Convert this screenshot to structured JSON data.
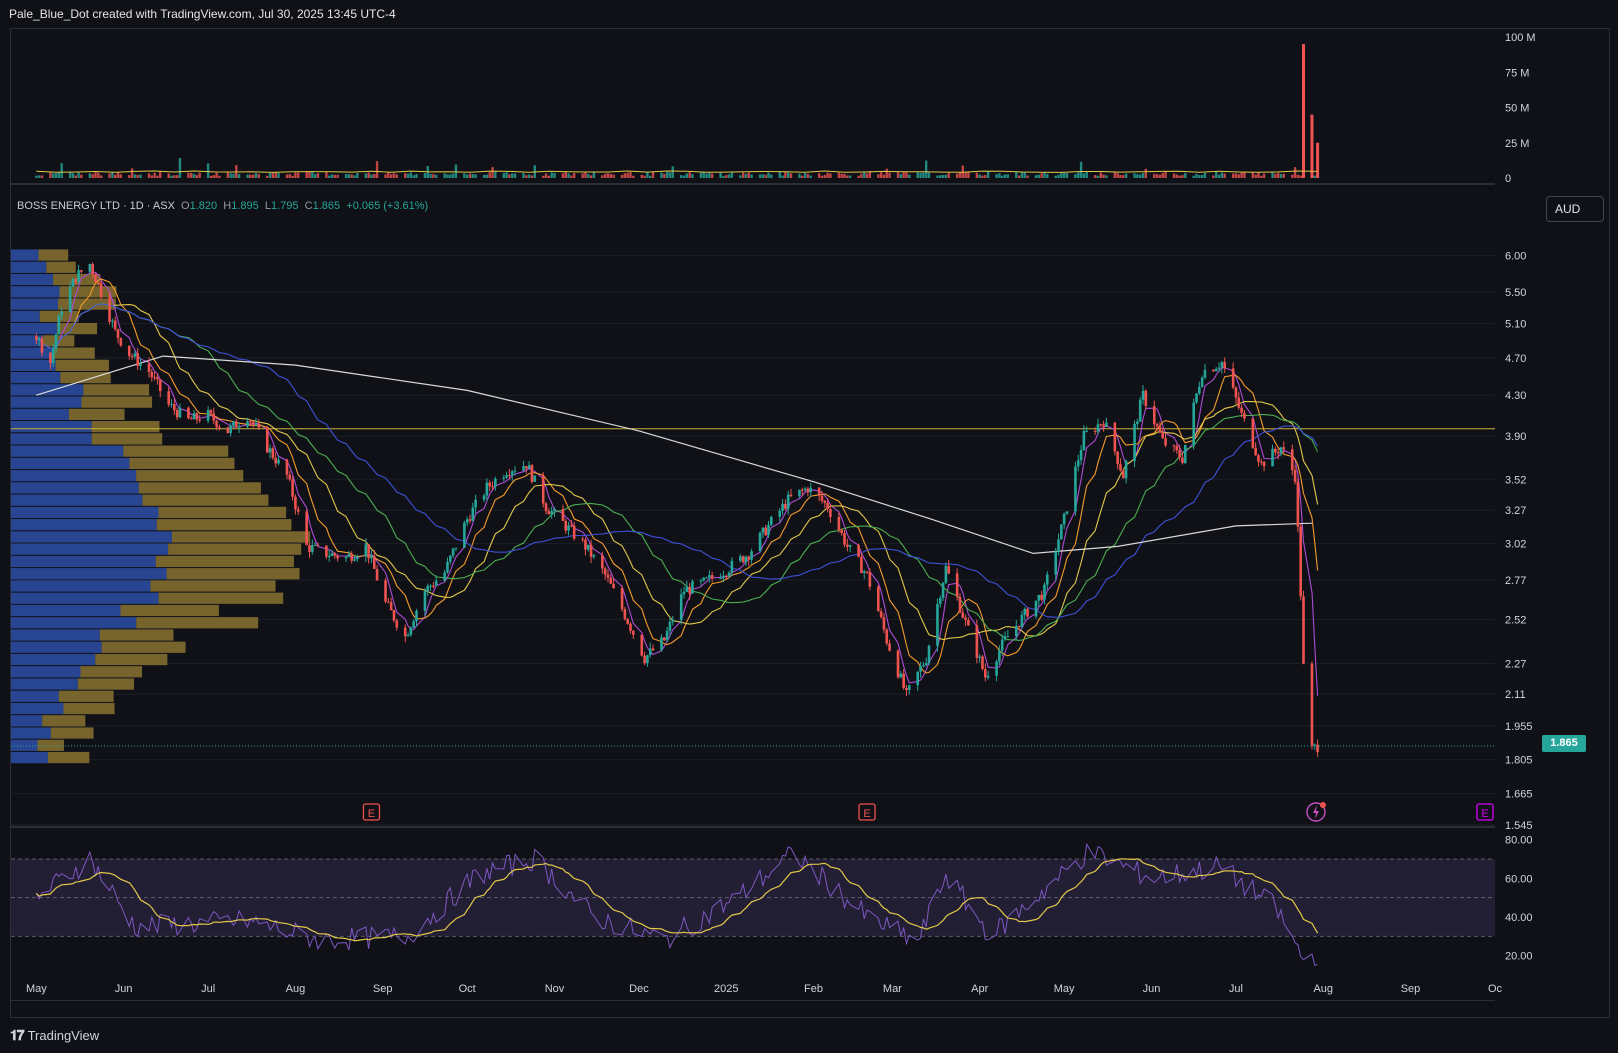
{
  "credit": "Pale_Blue_Dot created with TradingView.com, Jul 30, 2025 13:45 UTC-4",
  "brand": "TradingView",
  "currency": "AUD",
  "legend": {
    "symbol": "BOSS ENERGY LTD · 1D · ASX",
    "open_key": "O",
    "open": "1.820",
    "high_key": "H",
    "high": "1.895",
    "low_key": "L",
    "low": "1.795",
    "close_key": "C",
    "close": "1.865",
    "change": "+0.065 (+3.61%)"
  },
  "last_price_label": "1.865",
  "icons": [
    "earnings-marker-icon",
    "dividend-flash-icon",
    "tradingview-logo-icon"
  ],
  "colors": {
    "up": "#26a69a",
    "down": "#ef5350",
    "rsi": "#7e57c2",
    "rsi_ma": "#e2c84a",
    "sma200": "#d9d9d9",
    "vp_up": "#2d4fa8",
    "vp_down": "#8a7330",
    "resistance": "#c9b13a"
  },
  "chart_data": {
    "type": "candlestick",
    "x_ticks": [
      "May",
      "Jun",
      "Jul",
      "Aug",
      "Sep",
      "Oct",
      "Nov",
      "Dec",
      "2025",
      "Feb",
      "Mar",
      "Apr",
      "May",
      "Jun",
      "Jul",
      "Aug",
      "Sep",
      "Oc"
    ],
    "price_ticks": [
      "6.00",
      "5.50",
      "5.10",
      "4.70",
      "4.30",
      "3.90",
      "3.52",
      "3.27",
      "3.02",
      "2.77",
      "2.52",
      "2.27",
      "2.11",
      "1.955",
      "1.805",
      "1.665",
      "1.545"
    ],
    "log_scale": true,
    "volume_ticks": [
      "100 M",
      "75 M",
      "50 M",
      "25 M",
      "0"
    ],
    "rsi_ticks": [
      "80.00",
      "60.00",
      "40.00",
      "20.00"
    ],
    "rsi_bands": [
      70,
      50,
      30
    ],
    "resistance_level": 3.97,
    "price_path": [
      [
        "2024-05-01",
        4.95
      ],
      [
        "2024-05-06",
        4.65
      ],
      [
        "2024-05-10",
        5.3
      ],
      [
        "2024-05-15",
        5.7
      ],
      [
        "2024-05-20",
        5.88
      ],
      [
        "2024-05-24",
        5.5
      ],
      [
        "2024-05-29",
        5.0
      ],
      [
        "2024-06-03",
        4.75
      ],
      [
        "2024-06-10",
        4.55
      ],
      [
        "2024-06-17",
        4.2
      ],
      [
        "2024-06-24",
        4.05
      ],
      [
        "2024-07-01",
        4.1
      ],
      [
        "2024-07-08",
        3.95
      ],
      [
        "2024-07-15",
        4.1
      ],
      [
        "2024-07-22",
        3.8
      ],
      [
        "2024-07-29",
        3.55
      ],
      [
        "2024-08-05",
        3.0
      ],
      [
        "2024-08-12",
        2.95
      ],
      [
        "2024-08-19",
        2.92
      ],
      [
        "2024-08-26",
        3.0
      ],
      [
        "2024-09-02",
        2.62
      ],
      [
        "2024-09-09",
        2.42
      ],
      [
        "2024-09-16",
        2.7
      ],
      [
        "2024-09-23",
        2.82
      ],
      [
        "2024-10-01",
        3.2
      ],
      [
        "2024-10-08",
        3.45
      ],
      [
        "2024-10-15",
        3.6
      ],
      [
        "2024-10-22",
        3.65
      ],
      [
        "2024-10-29",
        3.3
      ],
      [
        "2024-11-05",
        3.15
      ],
      [
        "2024-11-12",
        3.0
      ],
      [
        "2024-11-19",
        2.8
      ],
      [
        "2024-11-26",
        2.55
      ],
      [
        "2024-12-03",
        2.3
      ],
      [
        "2024-12-10",
        2.4
      ],
      [
        "2024-12-17",
        2.7
      ],
      [
        "2024-12-24",
        2.75
      ],
      [
        "2025-01-02",
        2.85
      ],
      [
        "2025-01-09",
        2.95
      ],
      [
        "2025-01-16",
        3.15
      ],
      [
        "2025-01-23",
        3.35
      ],
      [
        "2025-01-30",
        3.45
      ],
      [
        "2025-02-06",
        3.3
      ],
      [
        "2025-02-13",
        3.0
      ],
      [
        "2025-02-20",
        2.8
      ],
      [
        "2025-02-27",
        2.4
      ],
      [
        "2025-03-06",
        2.1
      ],
      [
        "2025-03-13",
        2.3
      ],
      [
        "2025-03-20",
        2.85
      ],
      [
        "2025-03-27",
        2.5
      ],
      [
        "2025-04-03",
        2.2
      ],
      [
        "2025-04-10",
        2.4
      ],
      [
        "2025-04-17",
        2.55
      ],
      [
        "2025-04-24",
        2.7
      ],
      [
        "2025-05-01",
        3.2
      ],
      [
        "2025-05-08",
        3.9
      ],
      [
        "2025-05-15",
        4.05
      ],
      [
        "2025-05-22",
        3.55
      ],
      [
        "2025-05-29",
        4.3
      ],
      [
        "2025-06-05",
        3.85
      ],
      [
        "2025-06-12",
        3.7
      ],
      [
        "2025-06-19",
        4.55
      ],
      [
        "2025-06-26",
        4.65
      ],
      [
        "2025-07-03",
        4.1
      ],
      [
        "2025-07-10",
        3.65
      ],
      [
        "2025-07-17",
        3.8
      ],
      [
        "2025-07-22",
        3.55
      ],
      [
        "2025-07-25",
        2.25
      ],
      [
        "2025-07-28",
        1.85
      ],
      [
        "2025-07-30",
        1.865
      ]
    ],
    "sma200": [
      [
        "2024-05-01",
        4.3
      ],
      [
        "2024-06-15",
        4.72
      ],
      [
        "2024-08-01",
        4.62
      ],
      [
        "2024-10-01",
        4.35
      ],
      [
        "2024-12-01",
        3.95
      ],
      [
        "2025-02-01",
        3.5
      ],
      [
        "2025-03-15",
        3.2
      ],
      [
        "2025-04-20",
        2.95
      ],
      [
        "2025-05-20",
        3.0
      ],
      [
        "2025-07-01",
        3.15
      ],
      [
        "2025-07-28",
        3.17
      ]
    ],
    "volume_spikes": [
      [
        "2025-07-25",
        95
      ],
      [
        "2025-07-28",
        45
      ],
      [
        "2025-07-30",
        25
      ]
    ],
    "rsi_path": [
      [
        "2024-05-01",
        50
      ],
      [
        "2024-05-20",
        70
      ],
      [
        "2024-06-05",
        35
      ],
      [
        "2024-07-15",
        38
      ],
      [
        "2024-08-10",
        28
      ],
      [
        "2024-09-10",
        30
      ],
      [
        "2024-10-05",
        62
      ],
      [
        "2024-10-25",
        70
      ],
      [
        "2024-11-15",
        40
      ],
      [
        "2024-12-10",
        28
      ],
      [
        "2025-01-05",
        50
      ],
      [
        "2025-01-25",
        73
      ],
      [
        "2025-02-20",
        40
      ],
      [
        "2025-03-10",
        27
      ],
      [
        "2025-03-20",
        62
      ],
      [
        "2025-04-05",
        30
      ],
      [
        "2025-05-10",
        74
      ],
      [
        "2025-06-01",
        60
      ],
      [
        "2025-06-25",
        66
      ],
      [
        "2025-07-15",
        45
      ],
      [
        "2025-07-25",
        18
      ],
      [
        "2025-07-30",
        20
      ]
    ]
  }
}
